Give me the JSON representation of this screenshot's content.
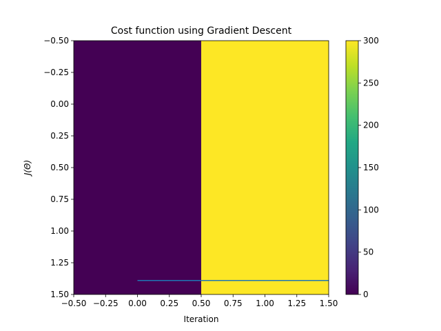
{
  "chart_data": {
    "type": "heatmap",
    "title": "Cost function using Gradient Descent",
    "xlabel": "Iteration",
    "ylabel": "J(Θ)",
    "xlim": [
      -0.5,
      1.5
    ],
    "ylim": [
      1.5,
      -0.5
    ],
    "y_inverted": true,
    "grid": false,
    "x_ticks": [
      "−0.50",
      "−0.25",
      "0.00",
      "0.25",
      "0.50",
      "0.75",
      "1.00",
      "1.25",
      "1.50"
    ],
    "x_tick_values": [
      -0.5,
      -0.25,
      0,
      0.25,
      0.5,
      0.75,
      1.0,
      1.25,
      1.5
    ],
    "y_ticks": [
      "−0.50",
      "−0.25",
      "0.00",
      "0.25",
      "0.50",
      "0.75",
      "1.00",
      "1.25",
      "1.50"
    ],
    "y_tick_values": [
      -0.5,
      -0.25,
      0,
      0.25,
      0.5,
      0.75,
      1.0,
      1.25,
      1.5
    ],
    "heatmap": {
      "cells": [
        {
          "x0": -0.5,
          "x1": 0.5,
          "y0": -0.5,
          "y1": 1.5,
          "value": 0
        },
        {
          "x0": 0.5,
          "x1": 1.5,
          "y0": -0.5,
          "y1": 1.5,
          "value": 300
        }
      ]
    },
    "line": {
      "x": [
        0,
        1.5
      ],
      "y": [
        1.39,
        1.39
      ],
      "color": "#1f77b4"
    },
    "colorbar": {
      "cmap": "viridis",
      "range": [
        0,
        300
      ],
      "ticks": [
        "0",
        "50",
        "100",
        "150",
        "200",
        "250",
        "300"
      ],
      "tick_values": [
        0,
        50,
        100,
        150,
        200,
        250,
        300
      ]
    }
  }
}
